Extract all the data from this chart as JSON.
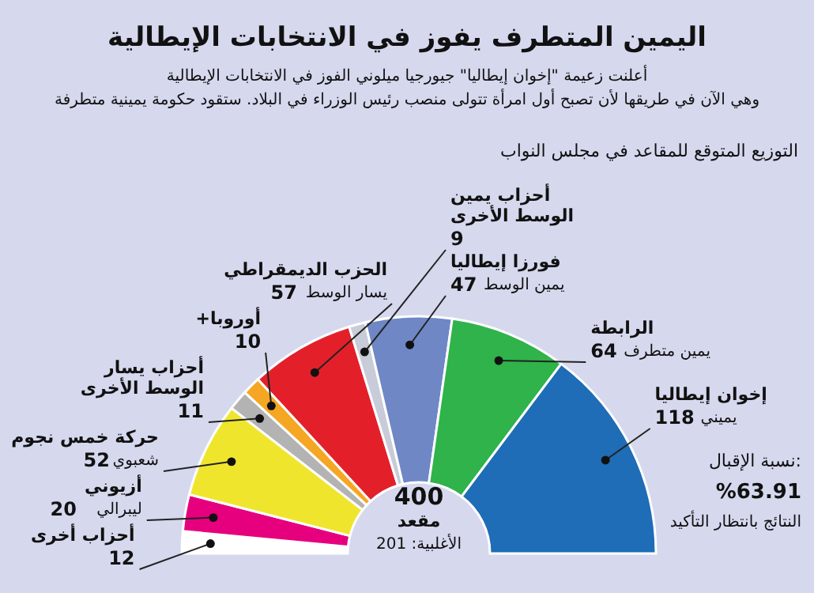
{
  "chart_data": {
    "type": "donut",
    "title": "اليمين المتطرف يفوز في الانتخابات الإيطالية",
    "subtitle": "أعلنت زعيمة \"إخوان إيطاليا\" جيورجيا ميلوني الفوز في الانتخابات الإيطالية\nوهي الآن في طريقها لأن تصبح أول امرأة تتولى منصب رئيس الوزراء في البلاد. ستقود حكومة يمينية متطرفة",
    "legend_title": "التوزيع المتوقع للمقاعد في مجلس النواب",
    "categories": [
      "أحزاب أخرى",
      "أزيوني",
      "حركة خمس نجوم",
      "أحزاب يسار الوسط الأخرى",
      "+أوروبا",
      "الحزب الديمقراطي",
      "أحزاب يمين الوسط الأخرى",
      "فورزا إيطاليا",
      "الرابطة",
      "إخوان إيطاليا"
    ],
    "values": [
      12,
      20,
      52,
      11,
      10,
      57,
      9,
      47,
      64,
      118
    ],
    "colors": [
      "#ffffff",
      "#e6007e",
      "#f0e52d",
      "#b3b3b3",
      "#f5a623",
      "#e3202a",
      "#c8cbd8",
      "#6f87c5",
      "#2fb34a",
      "#1f6cb7"
    ],
    "data_labels": true,
    "annotations": [
      {
        "text": "ليبرالي",
        "x": "أزيوني"
      },
      {
        "text": "شعبوي",
        "x": "حركة خمس نجوم"
      },
      {
        "text": "يسار الوسط",
        "x": "الحزب الديمقراطي"
      },
      {
        "text": "يمين الوسط",
        "x": "فورزا إيطاليا"
      },
      {
        "text": "يمين متطرف",
        "x": "الرابطة"
      },
      {
        "text": "يميني",
        "x": "إخوان إيطاليا"
      },
      "400",
      "مقعد",
      "الأغلبية: 201",
      "نسبة الإقبال:",
      "%63.91",
      "النتائج بانتظار التأكيد"
    ]
  }
}
